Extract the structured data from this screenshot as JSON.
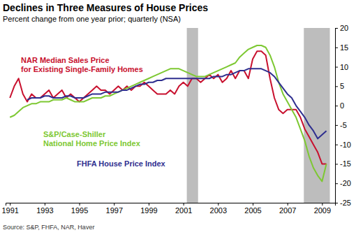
{
  "chart_data": {
    "type": "line",
    "title": "Declines in Three Measures of House Prices",
    "subtitle": "Percent change from one year prior; quarterly (NSA)",
    "source": "Source: S&P, FHFA, NAR, Haver",
    "x": [
      1991,
      1991.25,
      1991.5,
      1991.75,
      1992,
      1992.25,
      1992.5,
      1992.75,
      1993,
      1993.25,
      1993.5,
      1993.75,
      1994,
      1994.25,
      1994.5,
      1994.75,
      1995,
      1995.25,
      1995.5,
      1995.75,
      1996,
      1996.25,
      1996.5,
      1996.75,
      1997,
      1997.25,
      1997.5,
      1997.75,
      1998,
      1998.25,
      1998.5,
      1998.75,
      1999,
      1999.25,
      1999.5,
      1999.75,
      2000,
      2000.25,
      2000.5,
      2000.75,
      2001,
      2001.25,
      2001.5,
      2001.75,
      2002,
      2002.25,
      2002.5,
      2002.75,
      2003,
      2003.25,
      2003.5,
      2003.75,
      2004,
      2004.25,
      2004.5,
      2004.75,
      2005,
      2005.25,
      2005.5,
      2005.75,
      2006,
      2006.25,
      2006.5,
      2006.75,
      2007,
      2007.25,
      2007.5,
      2007.75,
      2008,
      2008.25,
      2008.5,
      2008.75,
      2009,
      2009.25
    ],
    "series": [
      {
        "name": "NAR Median Sales Price for Existing Single-Family Homes",
        "color": "#c8102e",
        "values": [
          2,
          5,
          7,
          3,
          1,
          3,
          2,
          2,
          3,
          4,
          2,
          3,
          4,
          2,
          3,
          2,
          1,
          2,
          3,
          4,
          5,
          4,
          4,
          3,
          4,
          5,
          4,
          5,
          4,
          5,
          5,
          6,
          5,
          4,
          3,
          3,
          3,
          4,
          3,
          5,
          6,
          5,
          7,
          7,
          6,
          7,
          8,
          7,
          8,
          6,
          7,
          9,
          7,
          9,
          9,
          7,
          12,
          14,
          14,
          13,
          7,
          2,
          -1,
          -2,
          -1,
          -1,
          -1,
          -3,
          -6,
          -8,
          -10,
          -12,
          -15,
          -15
        ]
      },
      {
        "name": "S&P/Case-Shiller National Home Price Index",
        "color": "#7dc832",
        "values": [
          -3,
          -2.5,
          -1.5,
          -0.5,
          0,
          0.5,
          0.5,
          1,
          1,
          1,
          1.5,
          1.5,
          1.5,
          2,
          1.5,
          1,
          1,
          1,
          1.5,
          2,
          2,
          2,
          2.5,
          2.5,
          3,
          3.5,
          4,
          4.5,
          5,
          5.5,
          6,
          6.5,
          7,
          7.5,
          8,
          8.5,
          9,
          9.5,
          9.5,
          9.5,
          9,
          8.5,
          8,
          7.5,
          7.5,
          7.5,
          8,
          8.5,
          9,
          9.5,
          10,
          10.5,
          11,
          12.5,
          13.5,
          14.5,
          15,
          15.5,
          15.5,
          15,
          13,
          10,
          6,
          3,
          1,
          -1,
          -3,
          -6,
          -9,
          -13,
          -16,
          -18,
          -19.5,
          -15
        ]
      },
      {
        "name": "FHFA House Price Index",
        "color": "#2e2e8f",
        "values": [
          null,
          null,
          null,
          null,
          1.5,
          2,
          2,
          2,
          2.5,
          2.5,
          2,
          2,
          2,
          2.5,
          2.5,
          2,
          2,
          2,
          2.5,
          3,
          3,
          3,
          3.5,
          3.5,
          3.5,
          3.5,
          4,
          4,
          4.5,
          5,
          5.5,
          5.5,
          6,
          6,
          6.5,
          6.5,
          7,
          7,
          7,
          7,
          7,
          7,
          7,
          7,
          7,
          7,
          7,
          7.5,
          7.5,
          7.5,
          8,
          8,
          8.5,
          9,
          9,
          9.5,
          9.5,
          9.5,
          9.5,
          9,
          8.5,
          7.5,
          6,
          4.5,
          3,
          2,
          0,
          -1.5,
          -3,
          -5,
          -6.5,
          -8.5,
          -7.5,
          -6.5
        ]
      }
    ],
    "shaded_periods": [
      [
        2001.2,
        2001.85
      ],
      [
        2007.95,
        2009.45
      ]
    ],
    "xlim": [
      1990.75,
      2009.75
    ],
    "xticks": [
      1991,
      1993,
      1995,
      1997,
      1999,
      2001,
      2003,
      2005,
      2007,
      2009
    ],
    "ylim": [
      -25,
      20
    ],
    "yticks": [
      -25,
      -20,
      -15,
      -10,
      -5,
      0,
      5,
      10,
      15,
      20
    ],
    "grid": false
  }
}
